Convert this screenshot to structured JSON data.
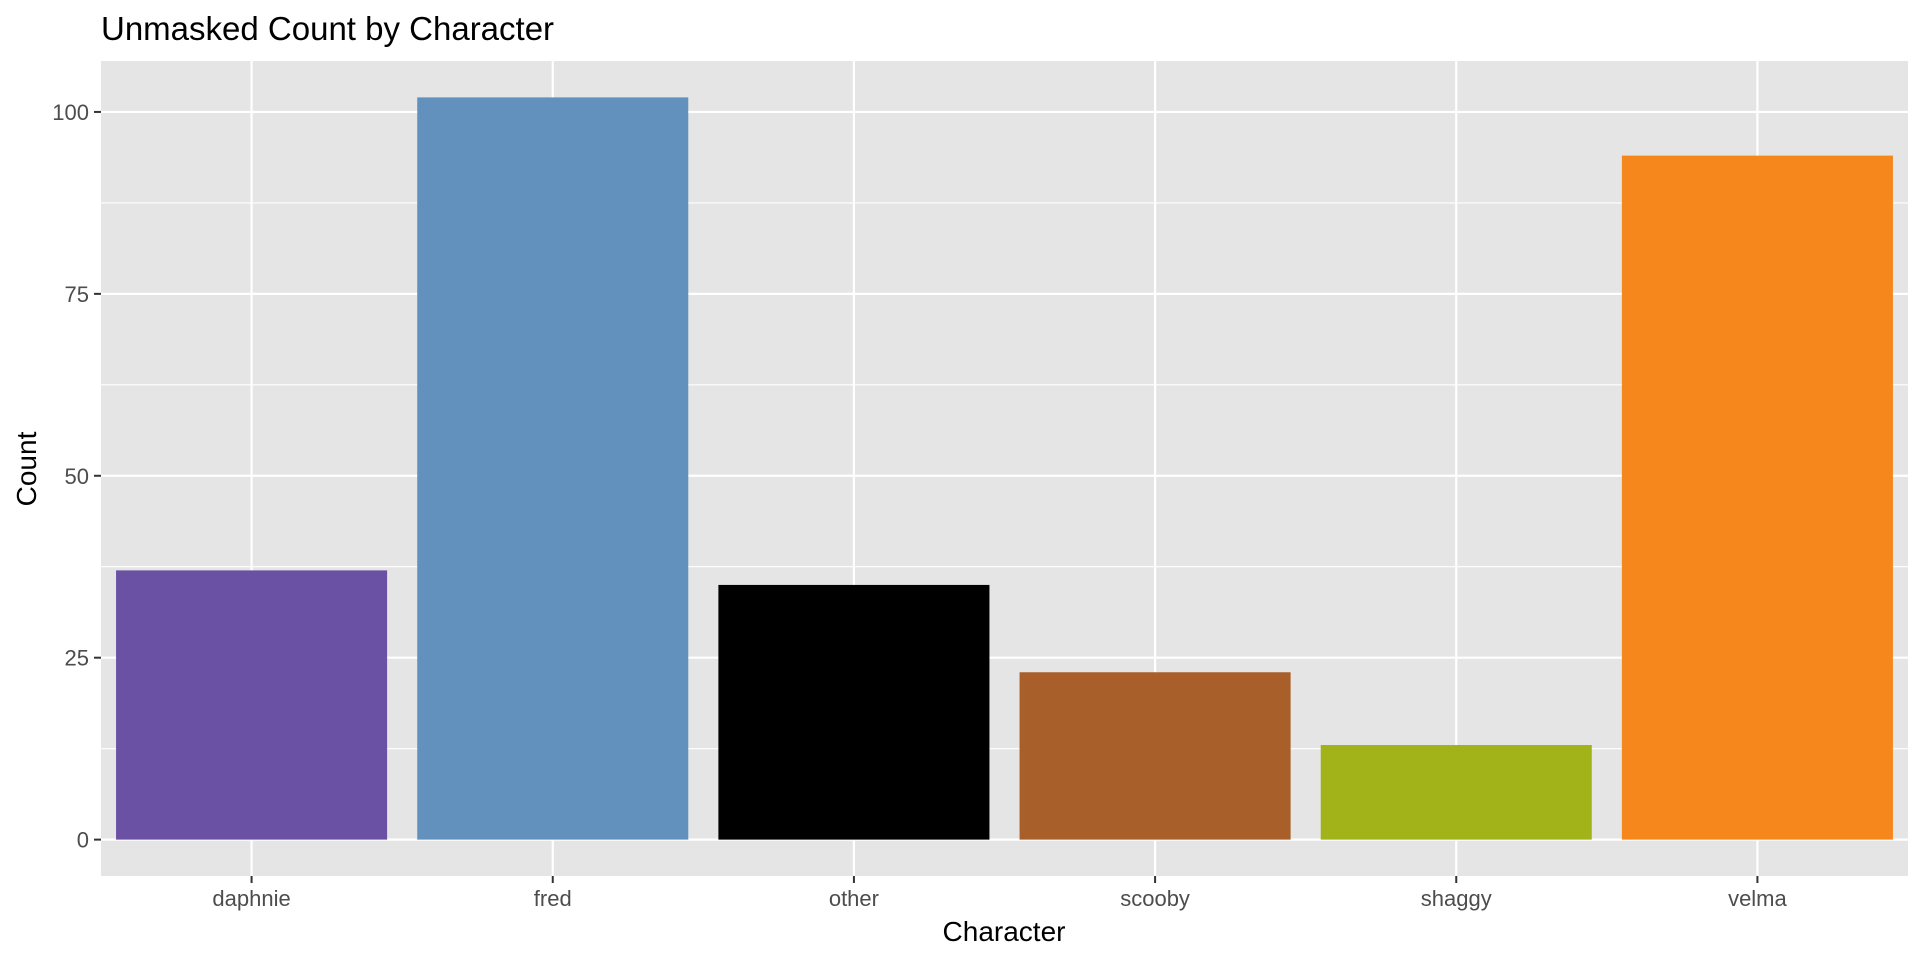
{
  "chart_data": {
    "type": "bar",
    "title": "Unmasked Count by Character",
    "xlabel": "Character",
    "ylabel": "Count",
    "categories": [
      "daphnie",
      "fred",
      "other",
      "scooby",
      "shaggy",
      "velma"
    ],
    "values": [
      37,
      102,
      35,
      23,
      13,
      94
    ],
    "colors": [
      "#6a51a3",
      "#6391be",
      "#000000",
      "#a85f29",
      "#a2b219",
      "#f5871d"
    ],
    "ylim": [
      -5,
      107
    ],
    "yticks": [
      0,
      25,
      50,
      75,
      100
    ],
    "grid": true,
    "legend": "none",
    "panel_background": "#e5e5e5",
    "grid_color": "#ffffff"
  }
}
